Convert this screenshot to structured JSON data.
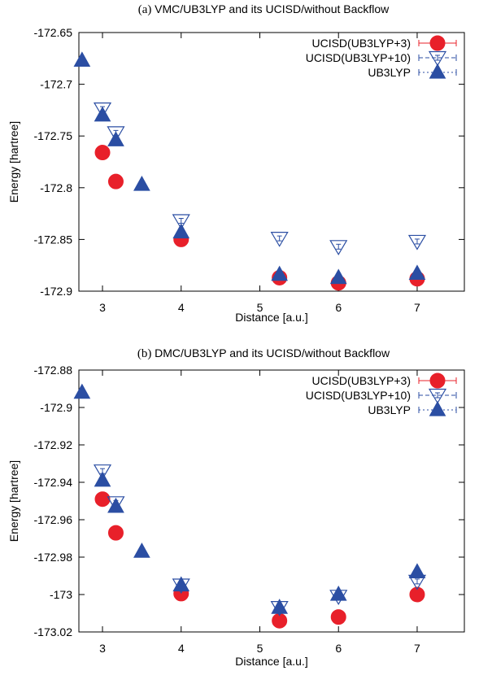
{
  "chart_data": [
    {
      "type": "scatter",
      "panel_label": "(a)",
      "title": "VMC/UB3LYP and its UCISD/without Backflow",
      "xlabel": "Distance [a.u.]",
      "ylabel": "Energy [hartree]",
      "xlim": [
        2.7,
        7.6
      ],
      "ylim": [
        -172.9,
        -172.65
      ],
      "xticks": [
        3,
        4,
        5,
        6,
        7
      ],
      "yticks": [
        -172.65,
        -172.7,
        -172.75,
        -172.8,
        -172.85,
        -172.9
      ],
      "xtick_labels": [
        "3",
        "4",
        "5",
        "6",
        "7"
      ],
      "ytick_labels": [
        "-172.65",
        "-172.7",
        "-172.75",
        "-172.8",
        "-172.85",
        "-172.9"
      ],
      "legend_position": "top-right",
      "series": [
        {
          "name": "UCISD(UB3LYP+3)",
          "marker": "filled-circle",
          "color": "#e8202a",
          "x": [
            3.0,
            3.17,
            4.0,
            5.25,
            6.0,
            7.0
          ],
          "y": [
            -172.766,
            -172.794,
            -172.85,
            -172.887,
            -172.892,
            -172.888
          ]
        },
        {
          "name": "UCISD(UB3LYP+10)",
          "marker": "open-triangle-down",
          "color": "#2b4ea3",
          "x": [
            3.0,
            3.17,
            4.0,
            5.25,
            6.0,
            7.0
          ],
          "y": [
            -172.724,
            -172.747,
            -172.832,
            -172.849,
            -172.857,
            -172.852
          ]
        },
        {
          "name": "UB3LYP",
          "marker": "filled-triangle-up",
          "color": "#2b4ea3",
          "x": [
            2.74,
            3.0,
            3.17,
            3.5,
            4.0,
            5.25,
            6.0,
            7.0
          ],
          "y": [
            -172.677,
            -172.73,
            -172.754,
            -172.797,
            -172.843,
            -172.884,
            -172.887,
            -172.883
          ]
        }
      ]
    },
    {
      "type": "scatter",
      "panel_label": "(b)",
      "title": "DMC/UB3LYP and its UCISD/without Backflow",
      "xlabel": "Distance [a.u.]",
      "ylabel": "Energy [hartree]",
      "xlim": [
        2.7,
        7.6
      ],
      "ylim": [
        -173.02,
        -172.88
      ],
      "xticks": [
        3,
        4,
        5,
        6,
        7
      ],
      "yticks": [
        -172.88,
        -172.9,
        -172.92,
        -172.94,
        -172.96,
        -172.98,
        -173.0,
        -173.02
      ],
      "xtick_labels": [
        "3",
        "4",
        "5",
        "6",
        "7"
      ],
      "ytick_labels": [
        "-172.88",
        "-172.9",
        "-172.92",
        "-172.94",
        "-172.96",
        "-172.98",
        "-173",
        "-173.02"
      ],
      "legend_position": "top-right",
      "series": [
        {
          "name": "UCISD(UB3LYP+3)",
          "marker": "filled-circle",
          "color": "#e8202a",
          "x": [
            3.0,
            3.17,
            4.0,
            5.25,
            6.0,
            7.0
          ],
          "y": [
            -172.949,
            -172.967,
            -172.9995,
            -173.014,
            -173.012,
            -173.0
          ]
        },
        {
          "name": "UCISD(UB3LYP+10)",
          "marker": "open-triangle-down",
          "color": "#2b4ea3",
          "x": [
            3.0,
            3.17,
            4.0,
            5.25,
            6.0,
            7.0
          ],
          "y": [
            -172.934,
            -172.951,
            -172.995,
            -173.007,
            -173.001,
            -172.993
          ]
        },
        {
          "name": "UB3LYP",
          "marker": "filled-triangle-up",
          "color": "#2b4ea3",
          "x": [
            2.74,
            3.0,
            3.17,
            3.5,
            4.0,
            5.25,
            6.0,
            7.0
          ],
          "y": [
            -172.892,
            -172.939,
            -172.953,
            -172.977,
            -172.995,
            -173.007,
            -173.0,
            -172.988
          ]
        }
      ]
    }
  ]
}
